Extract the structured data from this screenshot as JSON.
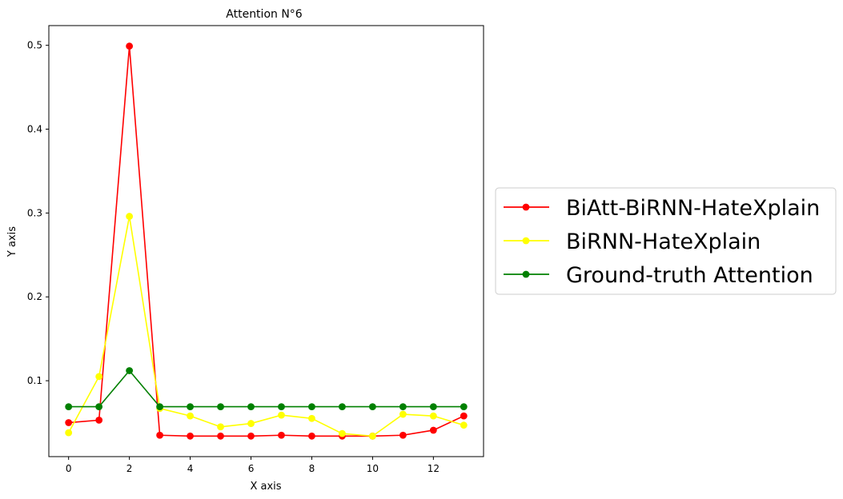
{
  "chart_data": {
    "type": "line",
    "title": "Attention N°6",
    "xlabel": "X axis",
    "ylabel": "Y axis",
    "xlim": [
      -0.65,
      13.65
    ],
    "ylim": [
      0.0095,
      0.5235
    ],
    "xticks": [
      0,
      2,
      4,
      6,
      8,
      10,
      12
    ],
    "yticks": [
      0.1,
      0.2,
      0.3,
      0.4,
      0.5
    ],
    "xtick_labels": [
      "0",
      "2",
      "4",
      "6",
      "8",
      "10",
      "12"
    ],
    "ytick_labels": [
      "0.1",
      "0.2",
      "0.3",
      "0.4",
      "0.5"
    ],
    "grid": false,
    "legend_position": "right-outside",
    "x": [
      0,
      1,
      2,
      3,
      4,
      5,
      6,
      7,
      8,
      9,
      10,
      11,
      12,
      13
    ],
    "series": [
      {
        "name": "BiAtt-BiRNN-HateXplain",
        "color": "#ff0000",
        "values": [
          0.05,
          0.053,
          0.499,
          0.035,
          0.034,
          0.034,
          0.034,
          0.035,
          0.034,
          0.034,
          0.034,
          0.035,
          0.041,
          0.058
        ]
      },
      {
        "name": "BiRNN-HateXplain",
        "color": "#ffff00",
        "values": [
          0.038,
          0.105,
          0.296,
          0.067,
          0.058,
          0.045,
          0.049,
          0.059,
          0.055,
          0.037,
          0.034,
          0.06,
          0.058,
          0.047
        ]
      },
      {
        "name": "Ground-truth Attention",
        "color": "#008000",
        "values": [
          0.069,
          0.069,
          0.112,
          0.069,
          0.069,
          0.069,
          0.069,
          0.069,
          0.069,
          0.069,
          0.069,
          0.069,
          0.069,
          0.069
        ]
      }
    ]
  }
}
